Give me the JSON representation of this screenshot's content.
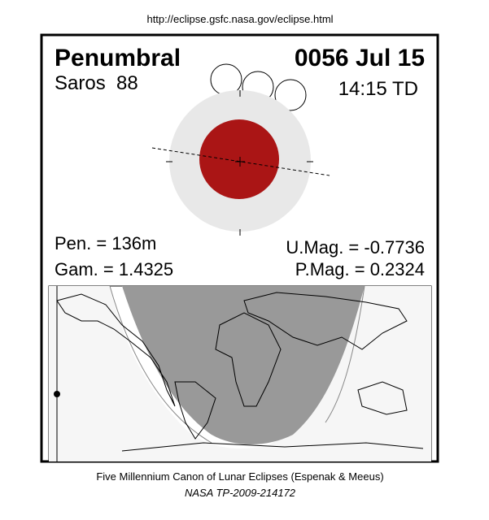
{
  "header": {
    "url": "http://eclipse.gsfc.nasa.gov/eclipse.html"
  },
  "eclipse": {
    "type": "Penumbral",
    "date": "0056 Jul 15",
    "saros": "Saros  88",
    "time": "14:15 TD",
    "pen": "Pen. = 136m",
    "gam": "Gam. = 1.4325",
    "umag": "U.Mag. = -0.7736",
    "pmag": "P.Mag. = 0.2324"
  },
  "footer": {
    "canon": "Five Millennium Canon of Lunar Eclipses (Espenak & Meeus)",
    "ref": "NASA TP-2009-214172"
  }
}
